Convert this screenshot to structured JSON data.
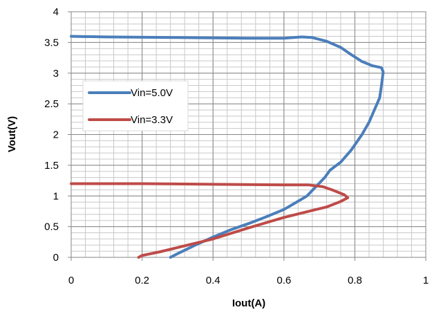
{
  "chart_data": {
    "type": "line",
    "xlabel": "Iout(A)",
    "ylabel": "Vout(V)",
    "xlim": [
      0,
      1
    ],
    "ylim": [
      0,
      4
    ],
    "x_ticks": [
      "0",
      "0.2",
      "0.4",
      "0.6",
      "0.8",
      "1"
    ],
    "y_ticks": [
      "0",
      "0.5",
      "1",
      "1.5",
      "2",
      "2.5",
      "3",
      "3.5",
      "4"
    ],
    "grid": true,
    "legend_position": "left-middle",
    "series": [
      {
        "name": "Vin=5.0V",
        "color": "#4a7ebb",
        "points": [
          [
            0.0,
            3.6
          ],
          [
            0.1,
            3.59
          ],
          [
            0.3,
            3.58
          ],
          [
            0.5,
            3.57
          ],
          [
            0.6,
            3.57
          ],
          [
            0.65,
            3.59
          ],
          [
            0.68,
            3.58
          ],
          [
            0.72,
            3.52
          ],
          [
            0.76,
            3.42
          ],
          [
            0.79,
            3.3
          ],
          [
            0.82,
            3.19
          ],
          [
            0.85,
            3.12
          ],
          [
            0.875,
            3.09
          ],
          [
            0.88,
            3.02
          ],
          [
            0.875,
            2.8
          ],
          [
            0.87,
            2.6
          ],
          [
            0.855,
            2.4
          ],
          [
            0.84,
            2.2
          ],
          [
            0.82,
            2.0
          ],
          [
            0.79,
            1.75
          ],
          [
            0.76,
            1.55
          ],
          [
            0.73,
            1.42
          ],
          [
            0.715,
            1.3
          ],
          [
            0.69,
            1.15
          ],
          [
            0.665,
            1.0
          ],
          [
            0.63,
            0.88
          ],
          [
            0.6,
            0.78
          ],
          [
            0.55,
            0.66
          ],
          [
            0.5,
            0.55
          ],
          [
            0.45,
            0.45
          ],
          [
            0.4,
            0.33
          ],
          [
            0.35,
            0.2
          ],
          [
            0.3,
            0.06
          ],
          [
            0.28,
            0.0
          ]
        ]
      },
      {
        "name": "Vin=3.3V",
        "color": "#be4b48",
        "points": [
          [
            0.0,
            1.2
          ],
          [
            0.2,
            1.2
          ],
          [
            0.4,
            1.19
          ],
          [
            0.6,
            1.18
          ],
          [
            0.67,
            1.18
          ],
          [
            0.71,
            1.15
          ],
          [
            0.74,
            1.09
          ],
          [
            0.77,
            1.02
          ],
          [
            0.78,
            0.97
          ],
          [
            0.76,
            0.91
          ],
          [
            0.72,
            0.82
          ],
          [
            0.67,
            0.75
          ],
          [
            0.6,
            0.65
          ],
          [
            0.5,
            0.48
          ],
          [
            0.4,
            0.3
          ],
          [
            0.3,
            0.16
          ],
          [
            0.25,
            0.09
          ],
          [
            0.2,
            0.03
          ],
          [
            0.19,
            0.0
          ]
        ]
      }
    ]
  }
}
